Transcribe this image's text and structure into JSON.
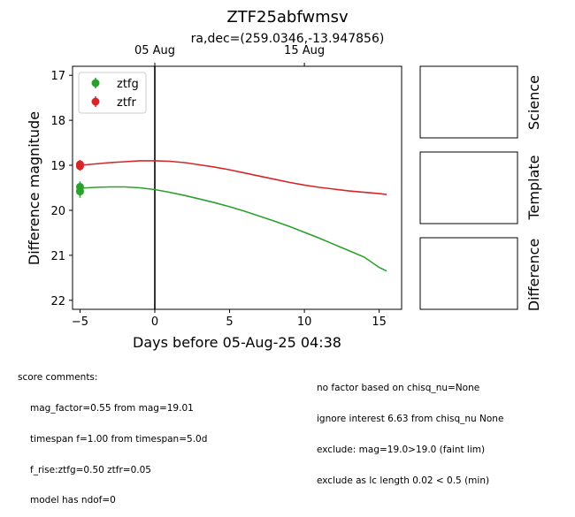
{
  "chart_data": {
    "type": "line",
    "title": "ZTF25abfwmsv",
    "subtitle": "ra,dec=(259.0346,-13.947856)",
    "xlabel": "Days before 05-Aug-25 04:38",
    "ylabel": "Difference magnitude",
    "xlim": [
      -5.5,
      16.5
    ],
    "ylim": [
      22.2,
      16.8
    ],
    "x_ticks": [
      -5,
      0,
      5,
      10,
      15
    ],
    "y_ticks": [
      17,
      18,
      19,
      20,
      21,
      22
    ],
    "top_axis_ticks": [
      {
        "label": "05 Aug",
        "x": 0
      },
      {
        "label": "15 Aug",
        "x": 10
      }
    ],
    "vline_x": 0,
    "legend": [
      "ztfg",
      "ztfr"
    ],
    "series": [
      {
        "name": "ztfg",
        "color": "#2ca02c",
        "points": [
          {
            "x": -5.0,
            "y": 19.48,
            "err": 0.12
          },
          {
            "x": -5.0,
            "y": 19.58,
            "err": 0.14
          }
        ],
        "model": {
          "x": [
            -5,
            -4,
            -3,
            -2,
            -1,
            0,
            1,
            2,
            3,
            4,
            5,
            6,
            7,
            8,
            9,
            10,
            11,
            12,
            13,
            14,
            15,
            15.5
          ],
          "y": [
            19.51,
            19.49,
            19.48,
            19.48,
            19.5,
            19.54,
            19.6,
            19.67,
            19.75,
            19.83,
            19.92,
            20.02,
            20.13,
            20.24,
            20.36,
            20.49,
            20.62,
            20.76,
            20.9,
            21.04,
            21.27,
            21.35
          ]
        }
      },
      {
        "name": "ztfr",
        "color": "#d62728",
        "points": [
          {
            "x": -5.0,
            "y": 18.98,
            "err": 0.1
          },
          {
            "x": -5.0,
            "y": 19.02,
            "err": 0.1
          }
        ],
        "model": {
          "x": [
            -5,
            -4,
            -3,
            -2,
            -1,
            0,
            1,
            2,
            3,
            4,
            5,
            6,
            7,
            8,
            9,
            10,
            11,
            12,
            13,
            14,
            15,
            15.5
          ],
          "y": [
            19.0,
            18.97,
            18.94,
            18.92,
            18.9,
            18.9,
            18.91,
            18.94,
            18.99,
            19.04,
            19.1,
            19.17,
            19.24,
            19.31,
            19.38,
            19.44,
            19.49,
            19.53,
            19.57,
            19.6,
            19.63,
            19.65
          ]
        }
      }
    ]
  },
  "panels": [
    "Science",
    "Template",
    "Difference"
  ],
  "score_comments": {
    "heading": "score comments:",
    "left": [
      "mag_factor=0.55 from mag=19.01",
      "timespan f=1.00 from timespan=5.0d",
      "f_rise:ztfg=0.50 ztfr=0.05",
      "model has ndof=0"
    ],
    "right": [
      "no factor based on chisq_nu=None",
      "ignore interest 6.63 from chisq_nu None",
      "exclude: mag=19.0>19.0 (faint lim)",
      "exclude as lc length 0.02 < 0.5 (min)"
    ]
  }
}
